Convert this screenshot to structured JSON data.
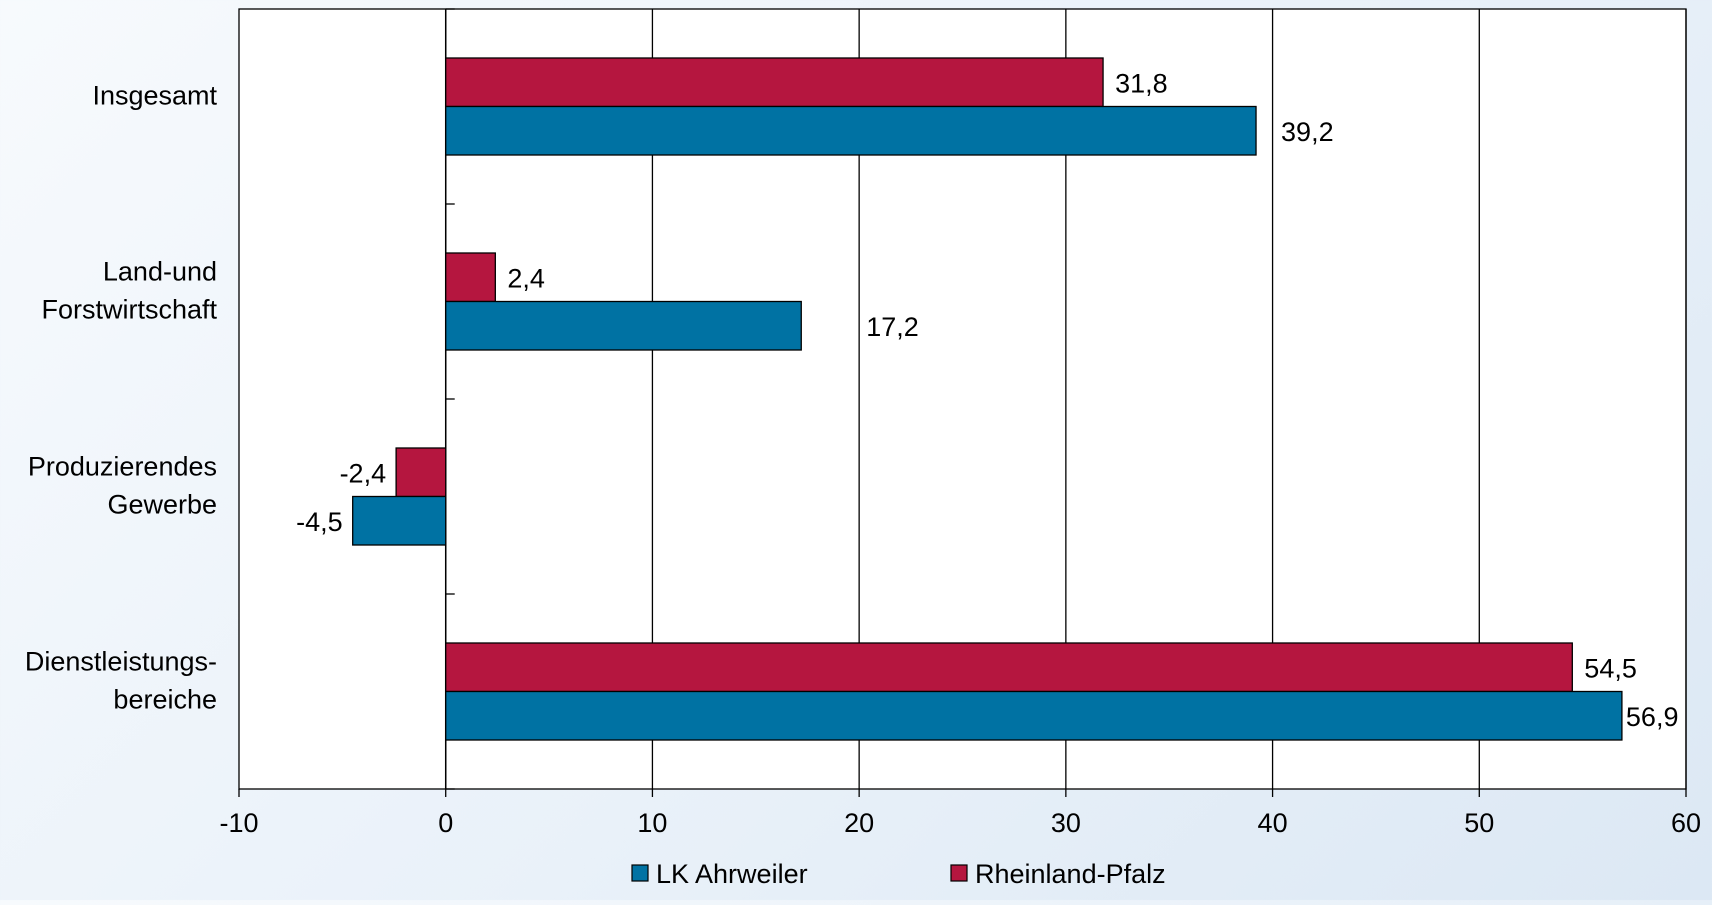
{
  "chart_data": {
    "type": "bar",
    "orientation": "horizontal",
    "title": "",
    "xlabel": "",
    "ylabel": "",
    "categories": [
      [
        "Insgesamt"
      ],
      [
        "Land-und",
        "Forstwirtschaft"
      ],
      [
        "Produzierendes",
        "Gewerbe"
      ],
      [
        "Dienstleistungs-",
        "bereiche"
      ]
    ],
    "series": [
      {
        "name": "Rheinland-Pfalz",
        "color": "#b5163f",
        "values": [
          31.8,
          2.4,
          -2.4,
          54.5
        ],
        "labels": [
          "31,8",
          "2,4",
          "-2,4",
          "54,5"
        ]
      },
      {
        "name": "LK Ahrweiler",
        "color": "#0072a3",
        "values": [
          39.2,
          17.2,
          -4.5,
          56.9
        ],
        "labels": [
          "39,2",
          "17,2",
          "-4,5",
          "56,9"
        ]
      }
    ],
    "xlim": [
      -10,
      60
    ],
    "xticks": [
      -10,
      0,
      10,
      20,
      30,
      40,
      50,
      60
    ],
    "grid": true,
    "legend": {
      "position": "bottom",
      "order": [
        "LK Ahrweiler",
        "Rheinland-Pfalz"
      ]
    }
  }
}
